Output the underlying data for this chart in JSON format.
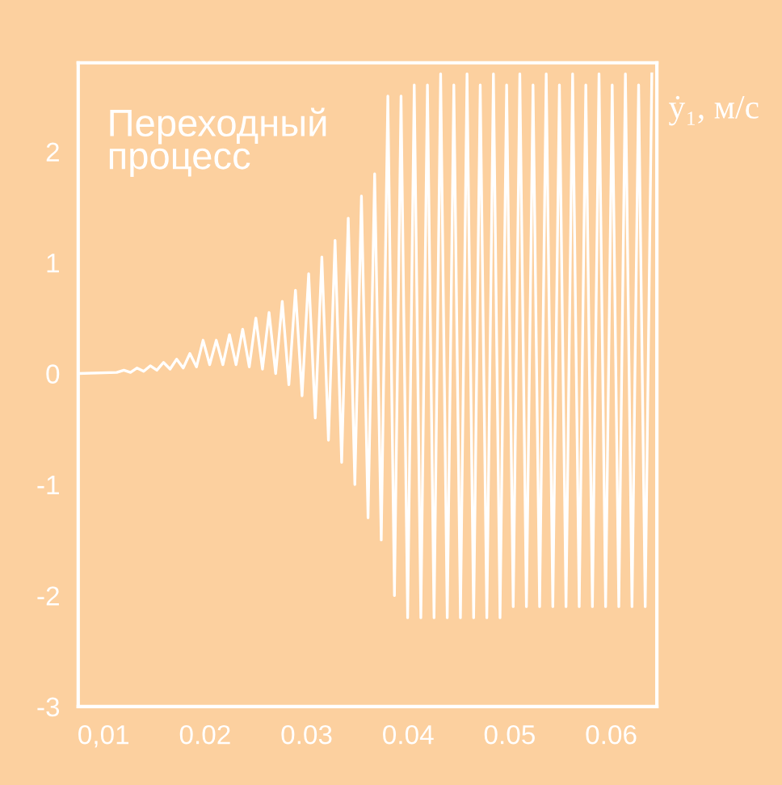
{
  "chart_data": {
    "type": "line",
    "ylabel": "ẏ₁, м/с",
    "annotations": [
      "Переходный\nпроцесс"
    ],
    "xlim": [
      0.0075,
      0.0645
    ],
    "ylim": [
      -3,
      2.8
    ],
    "xticks": [
      {
        "value": 0.01,
        "label": "0,01"
      },
      0.02,
      0.03,
      0.04,
      0.05,
      0.06
    ],
    "yticks": [
      -3,
      -2,
      -1,
      0,
      1,
      2
    ],
    "grid": false,
    "legend": false,
    "marker": "none",
    "line_style": "solid",
    "series": [
      {
        "color": "#ffffff",
        "x": [
          0.0075,
          0.0113,
          0.012,
          0.01265,
          0.0133,
          0.01395,
          0.0146,
          0.01525,
          0.0159,
          0.01655,
          0.0172,
          0.01785,
          0.0185,
          0.01915,
          0.0198,
          0.02045,
          0.0211,
          0.02175,
          0.0224,
          0.02305,
          0.0237,
          0.02435,
          0.025,
          0.02565,
          0.0263,
          0.02695,
          0.0276,
          0.02825,
          0.0289,
          0.02955,
          0.0302,
          0.03085,
          0.0315,
          0.03215,
          0.0328,
          0.03345,
          0.0341,
          0.03475,
          0.0354,
          0.03605,
          0.0367,
          0.03735,
          0.038,
          0.03865,
          0.0393,
          0.03995,
          0.0406,
          0.04125,
          0.0419,
          0.04255,
          0.0432,
          0.04385,
          0.0445,
          0.04515,
          0.0458,
          0.04645,
          0.0471,
          0.04775,
          0.0484,
          0.04905,
          0.0497,
          0.05035,
          0.051,
          0.05165,
          0.0523,
          0.05295,
          0.0536,
          0.05425,
          0.0549,
          0.05555,
          0.0562,
          0.05685,
          0.0575,
          0.05815,
          0.0588,
          0.05945,
          0.0601,
          0.06075,
          0.0614,
          0.06205,
          0.0627,
          0.06335,
          0.064
        ],
        "values": [
          0,
          0.01,
          0.03,
          0.01,
          0.05,
          0.02,
          0.07,
          0.03,
          0.1,
          0.04,
          0.13,
          0.05,
          0.18,
          0.06,
          0.3,
          0.08,
          0.3,
          0.08,
          0.35,
          0.08,
          0.4,
          0.06,
          0.5,
          0.04,
          0.55,
          0.0,
          0.65,
          -0.1,
          0.75,
          -0.2,
          0.9,
          -0.4,
          1.05,
          -0.6,
          1.2,
          -0.8,
          1.4,
          -1.0,
          1.6,
          -1.3,
          1.8,
          -1.5,
          2.5,
          -2.0,
          2.5,
          -2.2,
          2.6,
          -2.2,
          2.6,
          -2.2,
          2.7,
          -2.2,
          2.6,
          -2.2,
          2.7,
          -2.2,
          2.6,
          -2.2,
          2.7,
          -2.2,
          2.6,
          -2.1,
          2.7,
          -2.1,
          2.6,
          -2.1,
          2.7,
          -2.1,
          2.6,
          -2.1,
          2.7,
          -2.1,
          2.6,
          -2.1,
          2.7,
          -2.1,
          2.6,
          -2.1,
          2.7,
          -2.1,
          2.6,
          -2.1,
          2.7
        ]
      }
    ]
  }
}
